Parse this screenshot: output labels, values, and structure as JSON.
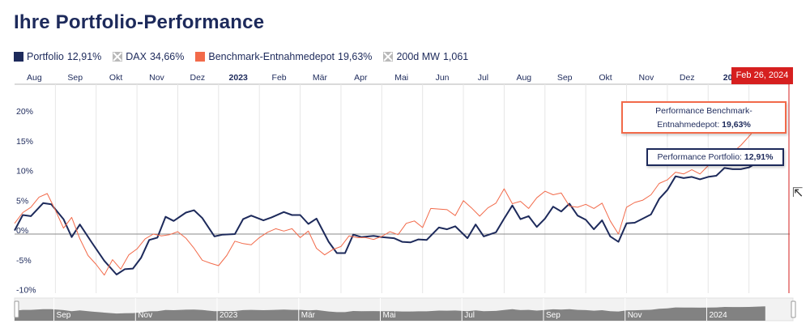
{
  "title": "Ihre Portfolio-Performance",
  "legend": [
    {
      "name": "Portfolio",
      "value": "12,91%",
      "color": "#1d2a5b",
      "enabled": true
    },
    {
      "name": "DAX",
      "value": "34,66%",
      "color": "#b9b9b9",
      "enabled": false
    },
    {
      "name": "Benchmark-Entnahmedepot",
      "value": "19,63%",
      "color": "#f26a4a",
      "enabled": true
    },
    {
      "name": "200d MW",
      "value": "1,061",
      "color": "#b9b9b9",
      "enabled": false
    }
  ],
  "tooltips": {
    "benchmark_line1": "Performance Benchmark-",
    "benchmark_label": "Entnahmedepot:",
    "benchmark_value": "19,63%",
    "portfolio_label": "Performance Portfolio:",
    "portfolio_value": "12,91%",
    "date": "Feb 26, 2024"
  },
  "chart_data": {
    "type": "line",
    "ylabel": "",
    "ylim": [
      -10,
      22
    ],
    "yticks": [
      20,
      15,
      10,
      5,
      0,
      -5,
      -10
    ],
    "ytick_labels": [
      "20%",
      "15%",
      "10%",
      "5%",
      "0%",
      "-5%",
      "-10%"
    ],
    "month_ticks": [
      {
        "label": "Aug",
        "x": 1.0,
        "bold": false
      },
      {
        "label": "Sep",
        "x": 2.0,
        "bold": false
      },
      {
        "label": "Okt",
        "x": 3.0,
        "bold": false
      },
      {
        "label": "Nov",
        "x": 4.0,
        "bold": false
      },
      {
        "label": "Dez",
        "x": 5.0,
        "bold": false
      },
      {
        "label": "2023",
        "x": 6.0,
        "bold": true
      },
      {
        "label": "Feb",
        "x": 7.0,
        "bold": false
      },
      {
        "label": "Mär",
        "x": 8.0,
        "bold": false
      },
      {
        "label": "Apr",
        "x": 9.0,
        "bold": false
      },
      {
        "label": "Mai",
        "x": 10.0,
        "bold": false
      },
      {
        "label": "Jun",
        "x": 11.0,
        "bold": false
      },
      {
        "label": "Jul",
        "x": 12.0,
        "bold": false
      },
      {
        "label": "Aug",
        "x": 13.0,
        "bold": false
      },
      {
        "label": "Sep",
        "x": 14.0,
        "bold": false
      },
      {
        "label": "Okt",
        "x": 15.0,
        "bold": false
      },
      {
        "label": "Nov",
        "x": 16.0,
        "bold": false
      },
      {
        "label": "Dez",
        "x": 17.0,
        "bold": false
      },
      {
        "label": "20",
        "x": 18.0,
        "bold": true
      }
    ],
    "navigator_ticks": [
      {
        "label": "Sep",
        "x": 1.5
      },
      {
        "label": "Nov",
        "x": 3.5
      },
      {
        "label": "2023",
        "x": 5.5
      },
      {
        "label": "Mär",
        "x": 7.5
      },
      {
        "label": "Mai",
        "x": 9.5
      },
      {
        "label": "Jul",
        "x": 11.5
      },
      {
        "label": "Sep",
        "x": 13.5
      },
      {
        "label": "Nov",
        "x": 15.5
      },
      {
        "label": "2024",
        "x": 17.5
      }
    ],
    "x_range": [
      0.0,
      19.0
    ],
    "series": [
      {
        "name": "Portfolio",
        "color": "#1d2a5b",
        "points": [
          [
            0.0,
            0.6
          ],
          [
            0.2,
            3.2
          ],
          [
            0.4,
            3.0
          ],
          [
            0.7,
            5.2
          ],
          [
            0.9,
            5.0
          ],
          [
            1.2,
            2.5
          ],
          [
            1.4,
            -0.5
          ],
          [
            1.6,
            1.6
          ],
          [
            1.9,
            -1.5
          ],
          [
            2.2,
            -4.5
          ],
          [
            2.5,
            -6.8
          ],
          [
            2.7,
            -5.9
          ],
          [
            2.9,
            -5.8
          ],
          [
            3.1,
            -4.0
          ],
          [
            3.3,
            -1.0
          ],
          [
            3.5,
            -0.6
          ],
          [
            3.7,
            2.9
          ],
          [
            3.9,
            2.2
          ],
          [
            4.2,
            3.6
          ],
          [
            4.4,
            4.0
          ],
          [
            4.6,
            2.7
          ],
          [
            4.9,
            -0.4
          ],
          [
            5.1,
            -0.1
          ],
          [
            5.4,
            0.0
          ],
          [
            5.6,
            2.5
          ],
          [
            5.8,
            3.1
          ],
          [
            6.1,
            2.3
          ],
          [
            6.3,
            2.8
          ],
          [
            6.6,
            3.7
          ],
          [
            6.8,
            3.2
          ],
          [
            7.0,
            3.2
          ],
          [
            7.2,
            1.7
          ],
          [
            7.4,
            2.6
          ],
          [
            7.7,
            -1.3
          ],
          [
            7.9,
            -3.2
          ],
          [
            8.1,
            -3.2
          ],
          [
            8.3,
            -0.1
          ],
          [
            8.5,
            -0.5
          ],
          [
            8.8,
            -0.3
          ],
          [
            9.0,
            -0.5
          ],
          [
            9.3,
            -0.7
          ],
          [
            9.5,
            -1.3
          ],
          [
            9.7,
            -1.4
          ],
          [
            9.9,
            -0.9
          ],
          [
            10.1,
            -1.0
          ],
          [
            10.4,
            1.1
          ],
          [
            10.6,
            0.8
          ],
          [
            10.8,
            1.3
          ],
          [
            11.1,
            -0.7
          ],
          [
            11.3,
            1.6
          ],
          [
            11.5,
            -0.4
          ],
          [
            11.8,
            0.3
          ],
          [
            12.0,
            2.6
          ],
          [
            12.2,
            4.8
          ],
          [
            12.4,
            2.5
          ],
          [
            12.6,
            3.0
          ],
          [
            12.8,
            1.2
          ],
          [
            13.0,
            2.6
          ],
          [
            13.2,
            4.6
          ],
          [
            13.4,
            3.8
          ],
          [
            13.6,
            5.1
          ],
          [
            13.8,
            3.1
          ],
          [
            14.0,
            2.4
          ],
          [
            14.2,
            0.8
          ],
          [
            14.4,
            2.3
          ],
          [
            14.6,
            -0.4
          ],
          [
            14.8,
            -1.3
          ],
          [
            15.0,
            1.8
          ],
          [
            15.2,
            1.9
          ],
          [
            15.4,
            2.6
          ],
          [
            15.6,
            3.3
          ],
          [
            15.8,
            5.9
          ],
          [
            16.0,
            7.4
          ],
          [
            16.2,
            9.7
          ],
          [
            16.4,
            9.4
          ],
          [
            16.6,
            9.6
          ],
          [
            16.8,
            9.2
          ],
          [
            17.0,
            9.6
          ],
          [
            17.2,
            9.8
          ],
          [
            17.4,
            11.1
          ],
          [
            17.6,
            10.9
          ],
          [
            17.8,
            10.9
          ],
          [
            18.0,
            11.2
          ],
          [
            18.2,
            12.0
          ],
          [
            18.4,
            12.91
          ]
        ]
      },
      {
        "name": "Benchmark-Entnahmedepot",
        "color": "#f26a4a",
        "points": [
          [
            0.0,
            1.8
          ],
          [
            0.2,
            3.6
          ],
          [
            0.4,
            4.5
          ],
          [
            0.6,
            6.2
          ],
          [
            0.8,
            6.8
          ],
          [
            1.0,
            4.0
          ],
          [
            1.2,
            1.0
          ],
          [
            1.4,
            2.8
          ],
          [
            1.6,
            -0.8
          ],
          [
            1.8,
            -3.6
          ],
          [
            2.0,
            -5.1
          ],
          [
            2.2,
            -6.9
          ],
          [
            2.4,
            -4.3
          ],
          [
            2.6,
            -5.9
          ],
          [
            2.8,
            -3.5
          ],
          [
            3.0,
            -2.5
          ],
          [
            3.2,
            -0.8
          ],
          [
            3.4,
            0.0
          ],
          [
            3.6,
            -0.3
          ],
          [
            3.8,
            -0.1
          ],
          [
            4.0,
            0.4
          ],
          [
            4.2,
            -0.7
          ],
          [
            4.4,
            -2.4
          ],
          [
            4.6,
            -4.4
          ],
          [
            4.8,
            -4.9
          ],
          [
            5.0,
            -5.3
          ],
          [
            5.2,
            -3.6
          ],
          [
            5.4,
            -1.2
          ],
          [
            5.6,
            -1.6
          ],
          [
            5.8,
            -1.8
          ],
          [
            6.0,
            -0.6
          ],
          [
            6.2,
            0.3
          ],
          [
            6.4,
            0.9
          ],
          [
            6.6,
            0.5
          ],
          [
            6.8,
            0.9
          ],
          [
            7.0,
            -0.6
          ],
          [
            7.2,
            0.5
          ],
          [
            7.4,
            -2.4
          ],
          [
            7.6,
            -3.5
          ],
          [
            7.8,
            -2.6
          ],
          [
            8.0,
            -2.1
          ],
          [
            8.2,
            -0.3
          ],
          [
            8.4,
            -0.6
          ],
          [
            8.6,
            -0.6
          ],
          [
            8.8,
            -0.9
          ],
          [
            9.0,
            -0.4
          ],
          [
            9.2,
            0.4
          ],
          [
            9.4,
            -0.1
          ],
          [
            9.6,
            1.8
          ],
          [
            9.8,
            2.2
          ],
          [
            10.0,
            1.1
          ],
          [
            10.2,
            4.3
          ],
          [
            10.4,
            4.2
          ],
          [
            10.6,
            4.1
          ],
          [
            10.8,
            3.1
          ],
          [
            11.0,
            5.6
          ],
          [
            11.2,
            4.4
          ],
          [
            11.4,
            3.0
          ],
          [
            11.6,
            4.4
          ],
          [
            11.8,
            5.2
          ],
          [
            12.0,
            7.6
          ],
          [
            12.2,
            5.1
          ],
          [
            12.4,
            5.5
          ],
          [
            12.6,
            4.3
          ],
          [
            12.8,
            6.1
          ],
          [
            13.0,
            7.2
          ],
          [
            13.2,
            6.6
          ],
          [
            13.4,
            6.9
          ],
          [
            13.6,
            4.7
          ],
          [
            13.8,
            4.5
          ],
          [
            14.0,
            5.0
          ],
          [
            14.2,
            4.3
          ],
          [
            14.4,
            5.2
          ],
          [
            14.6,
            2.2
          ],
          [
            14.8,
            0.0
          ],
          [
            15.0,
            4.5
          ],
          [
            15.2,
            5.3
          ],
          [
            15.4,
            5.7
          ],
          [
            15.6,
            6.6
          ],
          [
            15.8,
            8.5
          ],
          [
            16.0,
            9.1
          ],
          [
            16.2,
            10.4
          ],
          [
            16.4,
            10.1
          ],
          [
            16.6,
            10.8
          ],
          [
            16.8,
            10.1
          ],
          [
            17.0,
            11.5
          ],
          [
            17.2,
            11.9
          ],
          [
            17.4,
            12.6
          ],
          [
            17.6,
            13.7
          ],
          [
            17.8,
            14.9
          ],
          [
            18.0,
            16.4
          ],
          [
            18.2,
            18.0
          ],
          [
            18.4,
            19.63
          ]
        ]
      }
    ]
  }
}
